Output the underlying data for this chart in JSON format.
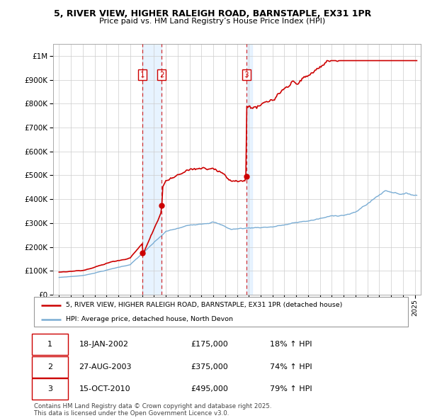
{
  "title_line1": "5, RIVER VIEW, HIGHER RALEIGH ROAD, BARNSTAPLE, EX31 1PR",
  "title_line2": "Price paid vs. HM Land Registry’s House Price Index (HPI)",
  "ytick_values": [
    0,
    100000,
    200000,
    300000,
    400000,
    500000,
    600000,
    700000,
    800000,
    900000,
    1000000
  ],
  "xlim": [
    1994.5,
    2025.5
  ],
  "ylim": [
    0,
    1050000
  ],
  "sales": [
    {
      "date_year": 2002.05,
      "price": 175000,
      "label": "1"
    },
    {
      "date_year": 2003.65,
      "price": 375000,
      "label": "2"
    },
    {
      "date_year": 2010.79,
      "price": 495000,
      "label": "3"
    }
  ],
  "vline_years": [
    2002.05,
    2003.65,
    2010.79
  ],
  "legend_property": "5, RIVER VIEW, HIGHER RALEIGH ROAD, BARNSTAPLE, EX31 1PR (detached house)",
  "legend_hpi": "HPI: Average price, detached house, North Devon",
  "table_rows": [
    {
      "num": "1",
      "date": "18-JAN-2002",
      "price": "£175,000",
      "change": "18% ↑ HPI"
    },
    {
      "num": "2",
      "date": "27-AUG-2003",
      "price": "£375,000",
      "change": "74% ↑ HPI"
    },
    {
      "num": "3",
      "date": "15-OCT-2010",
      "price": "£495,000",
      "change": "79% ↑ HPI"
    }
  ],
  "footer": "Contains HM Land Registry data © Crown copyright and database right 2025.\nThis data is licensed under the Open Government Licence v3.0.",
  "property_color": "#cc0000",
  "hpi_color": "#7aadd4",
  "shade_color": "#ddeeff",
  "vline_color": "#cc0000",
  "background_color": "#ffffff",
  "grid_color": "#cccccc"
}
